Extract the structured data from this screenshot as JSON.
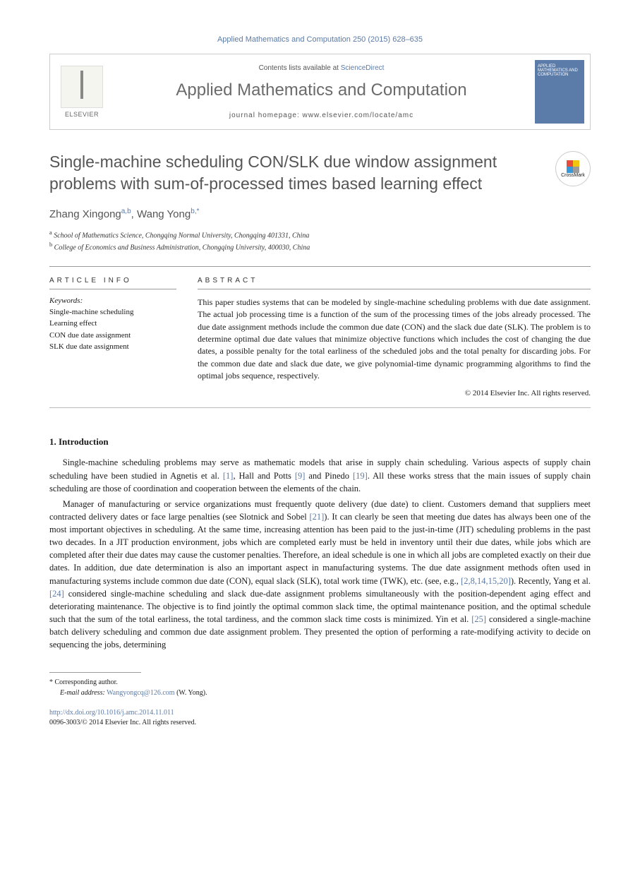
{
  "header": {
    "citation": "Applied Mathematics and Computation 250 (2015) 628–635",
    "contents_prefix": "Contents lists available at ",
    "contents_link": "ScienceDirect",
    "journal_title": "Applied Mathematics and Computation",
    "homepage_label": "journal homepage: www.elsevier.com/locate/amc",
    "publisher": "ELSEVIER",
    "cover_text": "APPLIED MATHEMATICS AND COMPUTATION"
  },
  "crossmark": "CrossMark",
  "title": "Single-machine scheduling CON/SLK due window assignment problems with sum-of-processed times based learning effect",
  "authors": {
    "list": "Zhang Xingong",
    "sup1": "a,b",
    "sep": ", ",
    "name2": "Wang Yong",
    "sup2": "b,",
    "star": "*"
  },
  "affiliations": {
    "a": "School of Mathematics Science, Chongqing Normal University, Chongqing 401331, China",
    "b": "College of Economics and Business Administration, Chongqing University, 400030, China"
  },
  "info": {
    "heading": "ARTICLE INFO",
    "keywords_label": "Keywords:",
    "keywords": [
      "Single-machine scheduling",
      "Learning effect",
      "CON due date assignment",
      "SLK due date assignment"
    ]
  },
  "abstract": {
    "heading": "ABSTRACT",
    "text": "This paper studies systems that can be modeled by single-machine scheduling problems with due date assignment. The actual job processing time is a function of the sum of the processing times of the jobs already processed. The due date assignment methods include the common due date (CON) and the slack due date (SLK). The problem is to determine optimal due date values that minimize objective functions which includes the cost of changing the due dates, a possible penalty for the total earliness of the scheduled jobs and the total penalty for discarding jobs. For the common due date and slack due date, we give polynomial-time dynamic programming algorithms to find the optimal jobs sequence, respectively.",
    "copyright": "© 2014 Elsevier Inc. All rights reserved."
  },
  "intro": {
    "heading": "1. Introduction",
    "p1_a": "Single-machine scheduling problems may serve as mathematic models that arise in supply chain scheduling. Various aspects of supply chain scheduling have been studied in Agnetis et al. ",
    "ref1": "[1]",
    "p1_b": ", Hall and Potts ",
    "ref9": "[9]",
    "p1_c": " and Pinedo ",
    "ref19": "[19]",
    "p1_d": ". All these works stress that the main issues of supply chain scheduling are those of coordination and cooperation between the elements of the chain.",
    "p2_a": "Manager of manufacturing or service organizations must frequently quote delivery (due date) to client. Customers demand that suppliers meet contracted delivery dates or face large penalties (see Slotnick and Sobel ",
    "ref21": "[21]",
    "p2_b": "). It can clearly be seen that meeting due dates has always been one of the most important objectives in scheduling. At the same time, increasing attention has been paid to the just-in-time (JIT) scheduling problems in the past two decades. In a JIT production environment, jobs which are completed early must be held in inventory until their due dates, while jobs which are completed after their due dates may cause the customer penalties. Therefore, an ideal schedule is one in which all jobs are completed exactly on their due dates. In addition, due date determination is also an important aspect in manufacturing systems. The due date assignment methods often used in manufacturing systems include common due date (CON), equal slack (SLK), total work time (TWK), etc. (see, e.g., ",
    "refgroup": "[2,8,14,15,20]",
    "p2_c": "). Recently, Yang et al. ",
    "ref24": "[24]",
    "p2_d": " considered single-machine scheduling and slack due-date assignment problems simultaneously with the position-dependent aging effect and deteriorating maintenance. The objective is to find jointly the optimal common slack time, the optimal maintenance position, and the optimal schedule such that the sum of the total earliness, the total tardiness, and the common slack time costs is minimized. Yin et al. ",
    "ref25": "[25]",
    "p2_e": " considered a single-machine batch delivery scheduling and common due date assignment problem. They presented the option of performing a rate-modifying activity to decide on sequencing the jobs, determining"
  },
  "footer": {
    "corr_label": "Corresponding author.",
    "email_label": "E-mail address:",
    "email": "Wangyongcq@126.com",
    "email_suffix": " (W. Yong).",
    "doi": "http://dx.doi.org/10.1016/j.amc.2014.11.011",
    "issn_line": "0096-3003/© 2014 Elsevier Inc. All rights reserved."
  },
  "colors": {
    "link": "#5b7ba8",
    "title_gray": "#555555",
    "text": "#1a1a1a",
    "border": "#cccccc",
    "cover_bg": "#5b7ba8"
  },
  "crossmark_colors": [
    "#e74c3c",
    "#f1c40f",
    "#3498db",
    "#9b9b9b"
  ]
}
